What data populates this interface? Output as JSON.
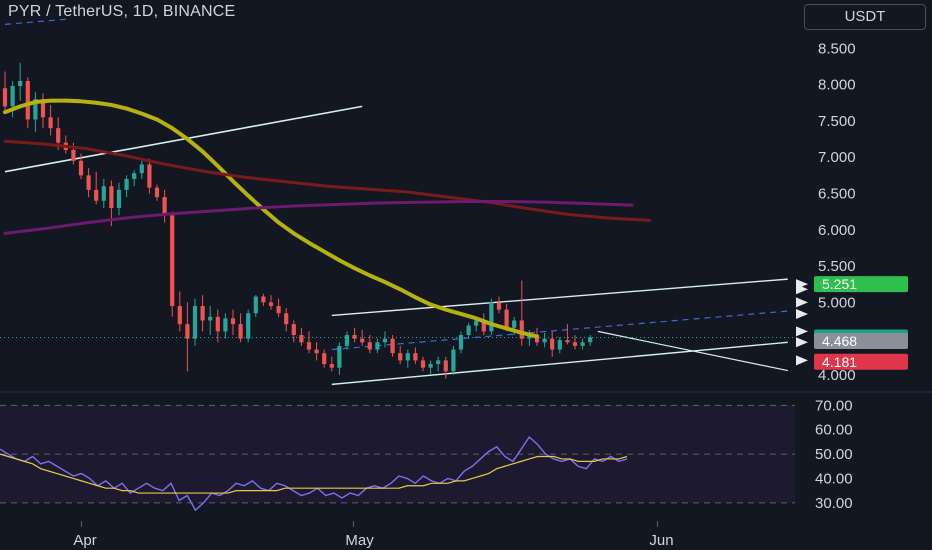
{
  "header": {
    "title": "PYR / TetherUS, 1D, BINANCE",
    "currency": "USDT"
  },
  "colors": {
    "background": "#131722",
    "up": "#26a69a",
    "down": "#ef5350",
    "ma_yellow": "#b5b10e",
    "ma_red": "#7a1b1b",
    "ma_purple": "#6e1a6e",
    "channel": "#d6f0f0",
    "dashed": "#3f6ad8",
    "rsi": "#7e6ff0",
    "rsi_ma": "#e8c84a",
    "target_zone": "#1f4d2b",
    "stop_zone": "#5a1f28"
  },
  "chart_data": [
    {
      "type": "candlestick",
      "title": "PYR / TetherUS, 1D, BINANCE",
      "x_tick_labels": [
        "Apr",
        "May",
        "Jun"
      ],
      "x_tick_index": [
        9,
        44,
        84
      ],
      "y_tick_labels": [
        "8.500",
        "8.000",
        "7.500",
        "7.000",
        "6.500",
        "6.000",
        "5.500",
        "5.000",
        "4.000"
      ],
      "y_tick_values": [
        8.5,
        8.0,
        7.5,
        7.0,
        6.5,
        6.0,
        5.5,
        5.0,
        4.0
      ],
      "ylim": [
        3.82,
        8.78
      ],
      "candles": [
        [
          7.95,
          8.18,
          7.62,
          7.7
        ],
        [
          7.7,
          8.05,
          7.55,
          7.98
        ],
        [
          7.98,
          8.3,
          7.78,
          8.05
        ],
        [
          8.05,
          8.1,
          7.4,
          7.52
        ],
        [
          7.52,
          7.9,
          7.35,
          7.8
        ],
        [
          7.8,
          7.88,
          7.4,
          7.55
        ],
        [
          7.55,
          7.72,
          7.3,
          7.4
        ],
        [
          7.4,
          7.55,
          7.1,
          7.2
        ],
        [
          7.2,
          7.3,
          7.05,
          7.1
        ],
        [
          7.1,
          7.2,
          6.9,
          6.95
        ],
        [
          6.95,
          7.05,
          6.7,
          6.75
        ],
        [
          6.75,
          6.85,
          6.45,
          6.55
        ],
        [
          6.55,
          6.8,
          6.35,
          6.4
        ],
        [
          6.4,
          6.7,
          6.3,
          6.6
        ],
        [
          6.6,
          6.68,
          6.05,
          6.3
        ],
        [
          6.3,
          6.65,
          6.2,
          6.55
        ],
        [
          6.55,
          6.75,
          6.45,
          6.7
        ],
        [
          6.7,
          6.82,
          6.6,
          6.78
        ],
        [
          6.78,
          6.95,
          6.7,
          6.9
        ],
        [
          6.9,
          6.98,
          6.5,
          6.58
        ],
        [
          6.58,
          6.62,
          6.4,
          6.45
        ],
        [
          6.45,
          6.55,
          6.1,
          6.2
        ],
        [
          6.2,
          6.25,
          4.8,
          4.95
        ],
        [
          4.95,
          5.15,
          4.6,
          4.7
        ],
        [
          4.7,
          5.0,
          4.05,
          4.5
        ],
        [
          4.5,
          5.05,
          4.4,
          4.95
        ],
        [
          4.95,
          5.1,
          4.6,
          4.75
        ],
        [
          4.75,
          4.95,
          4.55,
          4.8
        ],
        [
          4.8,
          4.9,
          4.45,
          4.6
        ],
        [
          4.6,
          4.85,
          4.5,
          4.78
        ],
        [
          4.78,
          4.9,
          4.55,
          4.7
        ],
        [
          4.7,
          4.85,
          4.45,
          4.5
        ],
        [
          4.5,
          4.9,
          4.45,
          4.85
        ],
        [
          4.85,
          5.1,
          4.8,
          5.08
        ],
        [
          5.08,
          5.12,
          4.95,
          5.0
        ],
        [
          5.0,
          5.1,
          4.9,
          4.95
        ],
        [
          4.95,
          5.05,
          4.8,
          4.85
        ],
        [
          4.85,
          4.92,
          4.6,
          4.7
        ],
        [
          4.7,
          4.75,
          4.45,
          4.55
        ],
        [
          4.55,
          4.65,
          4.4,
          4.45
        ],
        [
          4.45,
          4.6,
          4.3,
          4.35
        ],
        [
          4.35,
          4.45,
          4.2,
          4.3
        ],
        [
          4.3,
          4.35,
          4.1,
          4.15
        ],
        [
          4.15,
          4.25,
          4.05,
          4.1
        ],
        [
          4.1,
          4.45,
          4.0,
          4.4
        ],
        [
          4.4,
          4.6,
          4.35,
          4.55
        ],
        [
          4.55,
          4.65,
          4.45,
          4.5
        ],
        [
          4.5,
          4.62,
          4.4,
          4.45
        ],
        [
          4.45,
          4.55,
          4.3,
          4.35
        ],
        [
          4.35,
          4.5,
          4.3,
          4.45
        ],
        [
          4.45,
          4.6,
          4.38,
          4.5
        ],
        [
          4.5,
          4.55,
          4.25,
          4.3
        ],
        [
          4.3,
          4.4,
          4.15,
          4.2
        ],
        [
          4.2,
          4.35,
          4.1,
          4.3
        ],
        [
          4.3,
          4.38,
          4.15,
          4.2
        ],
        [
          4.2,
          4.25,
          4.05,
          4.1
        ],
        [
          4.1,
          4.2,
          4.0,
          4.15
        ],
        [
          4.15,
          4.25,
          4.05,
          4.2
        ],
        [
          4.2,
          4.25,
          3.95,
          4.05
        ],
        [
          4.05,
          4.4,
          4.0,
          4.35
        ],
        [
          4.35,
          4.6,
          4.3,
          4.55
        ],
        [
          4.55,
          4.72,
          4.5,
          4.68
        ],
        [
          4.68,
          4.8,
          4.6,
          4.75
        ],
        [
          4.75,
          4.85,
          4.55,
          4.6
        ],
        [
          4.6,
          5.05,
          4.55,
          5.0
        ],
        [
          5.0,
          5.08,
          4.85,
          4.9
        ],
        [
          4.9,
          4.98,
          4.6,
          4.65
        ],
        [
          4.65,
          4.8,
          4.55,
          4.75
        ],
        [
          4.75,
          5.3,
          4.4,
          4.5
        ],
        [
          4.5,
          4.62,
          4.4,
          4.55
        ],
        [
          4.55,
          4.65,
          4.4,
          4.45
        ],
        [
          4.45,
          4.58,
          4.38,
          4.5
        ],
        [
          4.5,
          4.6,
          4.25,
          4.35
        ],
        [
          4.35,
          4.52,
          4.3,
          4.48
        ],
        [
          4.48,
          4.7,
          4.42,
          4.45
        ],
        [
          4.45,
          4.55,
          4.35,
          4.4
        ],
        [
          4.4,
          4.5,
          4.35,
          4.45
        ],
        [
          4.45,
          4.55,
          4.4,
          4.52
        ]
      ],
      "ma50": [
        7.62,
        7.7,
        7.76,
        7.78,
        7.78,
        7.77,
        7.75,
        7.72,
        7.67,
        7.6,
        7.52,
        7.4,
        7.25,
        7.08,
        6.88,
        6.67,
        6.47,
        6.28,
        6.1,
        5.95,
        5.82,
        5.7,
        5.58,
        5.47,
        5.37,
        5.28,
        5.18,
        5.07,
        4.97,
        4.9,
        4.84,
        4.78,
        4.7,
        4.64,
        4.58,
        4.53
      ],
      "ma50_index": [
        0,
        4,
        8,
        12,
        16,
        20,
        24,
        28,
        32,
        36,
        40,
        44,
        48,
        52,
        56,
        60,
        64,
        68,
        72,
        76,
        80,
        84,
        88,
        92,
        96,
        100,
        104,
        108,
        112,
        116,
        120,
        124,
        128,
        132,
        136,
        140
      ],
      "ma200": [
        7.22,
        7.18,
        7.12,
        7.02,
        6.9,
        6.8,
        6.72,
        6.66,
        6.6,
        6.56,
        6.52,
        6.45,
        6.38,
        6.29,
        6.21,
        6.16,
        6.13
      ],
      "ma100": [
        5.95,
        6.02,
        6.1,
        6.17,
        6.22,
        6.26,
        6.3,
        6.33,
        6.35,
        6.37,
        6.38,
        6.39,
        6.39,
        6.38,
        6.36,
        6.34
      ],
      "channel_upper": [
        [
          43,
          4.82
        ],
        [
          103,
          5.32
        ]
      ],
      "channel_lower": [
        [
          43,
          3.87
        ],
        [
          103,
          4.45
        ]
      ],
      "channel_mid": [
        [
          43,
          4.35
        ],
        [
          103,
          4.88
        ]
      ],
      "upper_trend": [
        [
          0,
          6.8
        ],
        [
          47,
          7.7
        ]
      ],
      "falling_lower": [
        [
          78,
          4.6
        ],
        [
          103,
          4.06
        ]
      ],
      "upper_dashed_top": [
        [
          0,
          8.83
        ],
        [
          8,
          8.9
        ]
      ],
      "price_badges": [
        {
          "label": "5.251",
          "value": 5.251,
          "color": "#2fbf4f"
        },
        {
          "label": "4.516",
          "value": 4.516,
          "color": "#1f9e8a"
        },
        {
          "label": "4.468",
          "value": 4.468,
          "color": "#8b8f99"
        },
        {
          "label": "4.181",
          "value": 4.181,
          "color": "#e0364b"
        }
      ],
      "last_price": 4.516,
      "position": {
        "entry": 4.468,
        "target": 5.251,
        "stop": 4.181,
        "start_index": 98,
        "end_index": 106
      }
    },
    {
      "type": "line",
      "title": "RSI",
      "y_tick_labels": [
        "70.00",
        "60.00",
        "50.00",
        "40.00",
        "30.00"
      ],
      "y_tick_values": [
        70,
        60,
        50,
        40,
        30
      ],
      "ylim": [
        25,
        73
      ],
      "rsi": [
        52,
        50,
        48,
        47,
        49,
        46,
        47,
        45,
        43,
        41,
        42,
        40,
        37,
        39,
        36,
        38,
        34,
        36,
        38,
        36,
        35,
        38,
        31,
        33,
        27,
        30,
        34,
        33,
        35,
        38,
        37,
        39,
        36,
        35,
        38,
        37,
        35,
        33,
        34,
        36,
        33,
        34,
        32,
        34,
        33,
        36,
        37,
        36,
        38,
        41,
        40,
        38,
        41,
        39,
        38,
        40,
        39,
        43,
        45,
        48,
        51,
        53,
        49,
        47,
        52,
        57,
        54,
        50,
        48,
        47,
        48,
        45,
        44,
        48,
        47,
        49,
        47,
        48
      ],
      "rsi_ma": [
        50,
        49,
        48,
        47,
        46,
        44,
        43,
        42,
        41,
        40,
        39,
        38,
        37,
        36,
        36,
        35,
        35,
        34,
        34,
        34,
        34,
        34,
        34,
        34,
        34,
        34,
        34,
        34,
        34,
        35,
        35,
        35,
        35,
        35,
        35,
        36,
        36,
        36,
        36,
        36,
        36,
        36,
        36,
        36,
        36,
        36,
        36,
        36,
        36,
        36,
        37,
        37,
        37,
        38,
        38,
        38,
        39,
        39,
        40,
        41,
        42,
        44,
        45,
        46,
        47,
        48,
        49,
        49,
        49,
        48,
        48,
        47,
        47,
        47,
        48,
        48,
        48,
        49
      ],
      "guides": [
        70,
        50,
        30
      ]
    }
  ]
}
